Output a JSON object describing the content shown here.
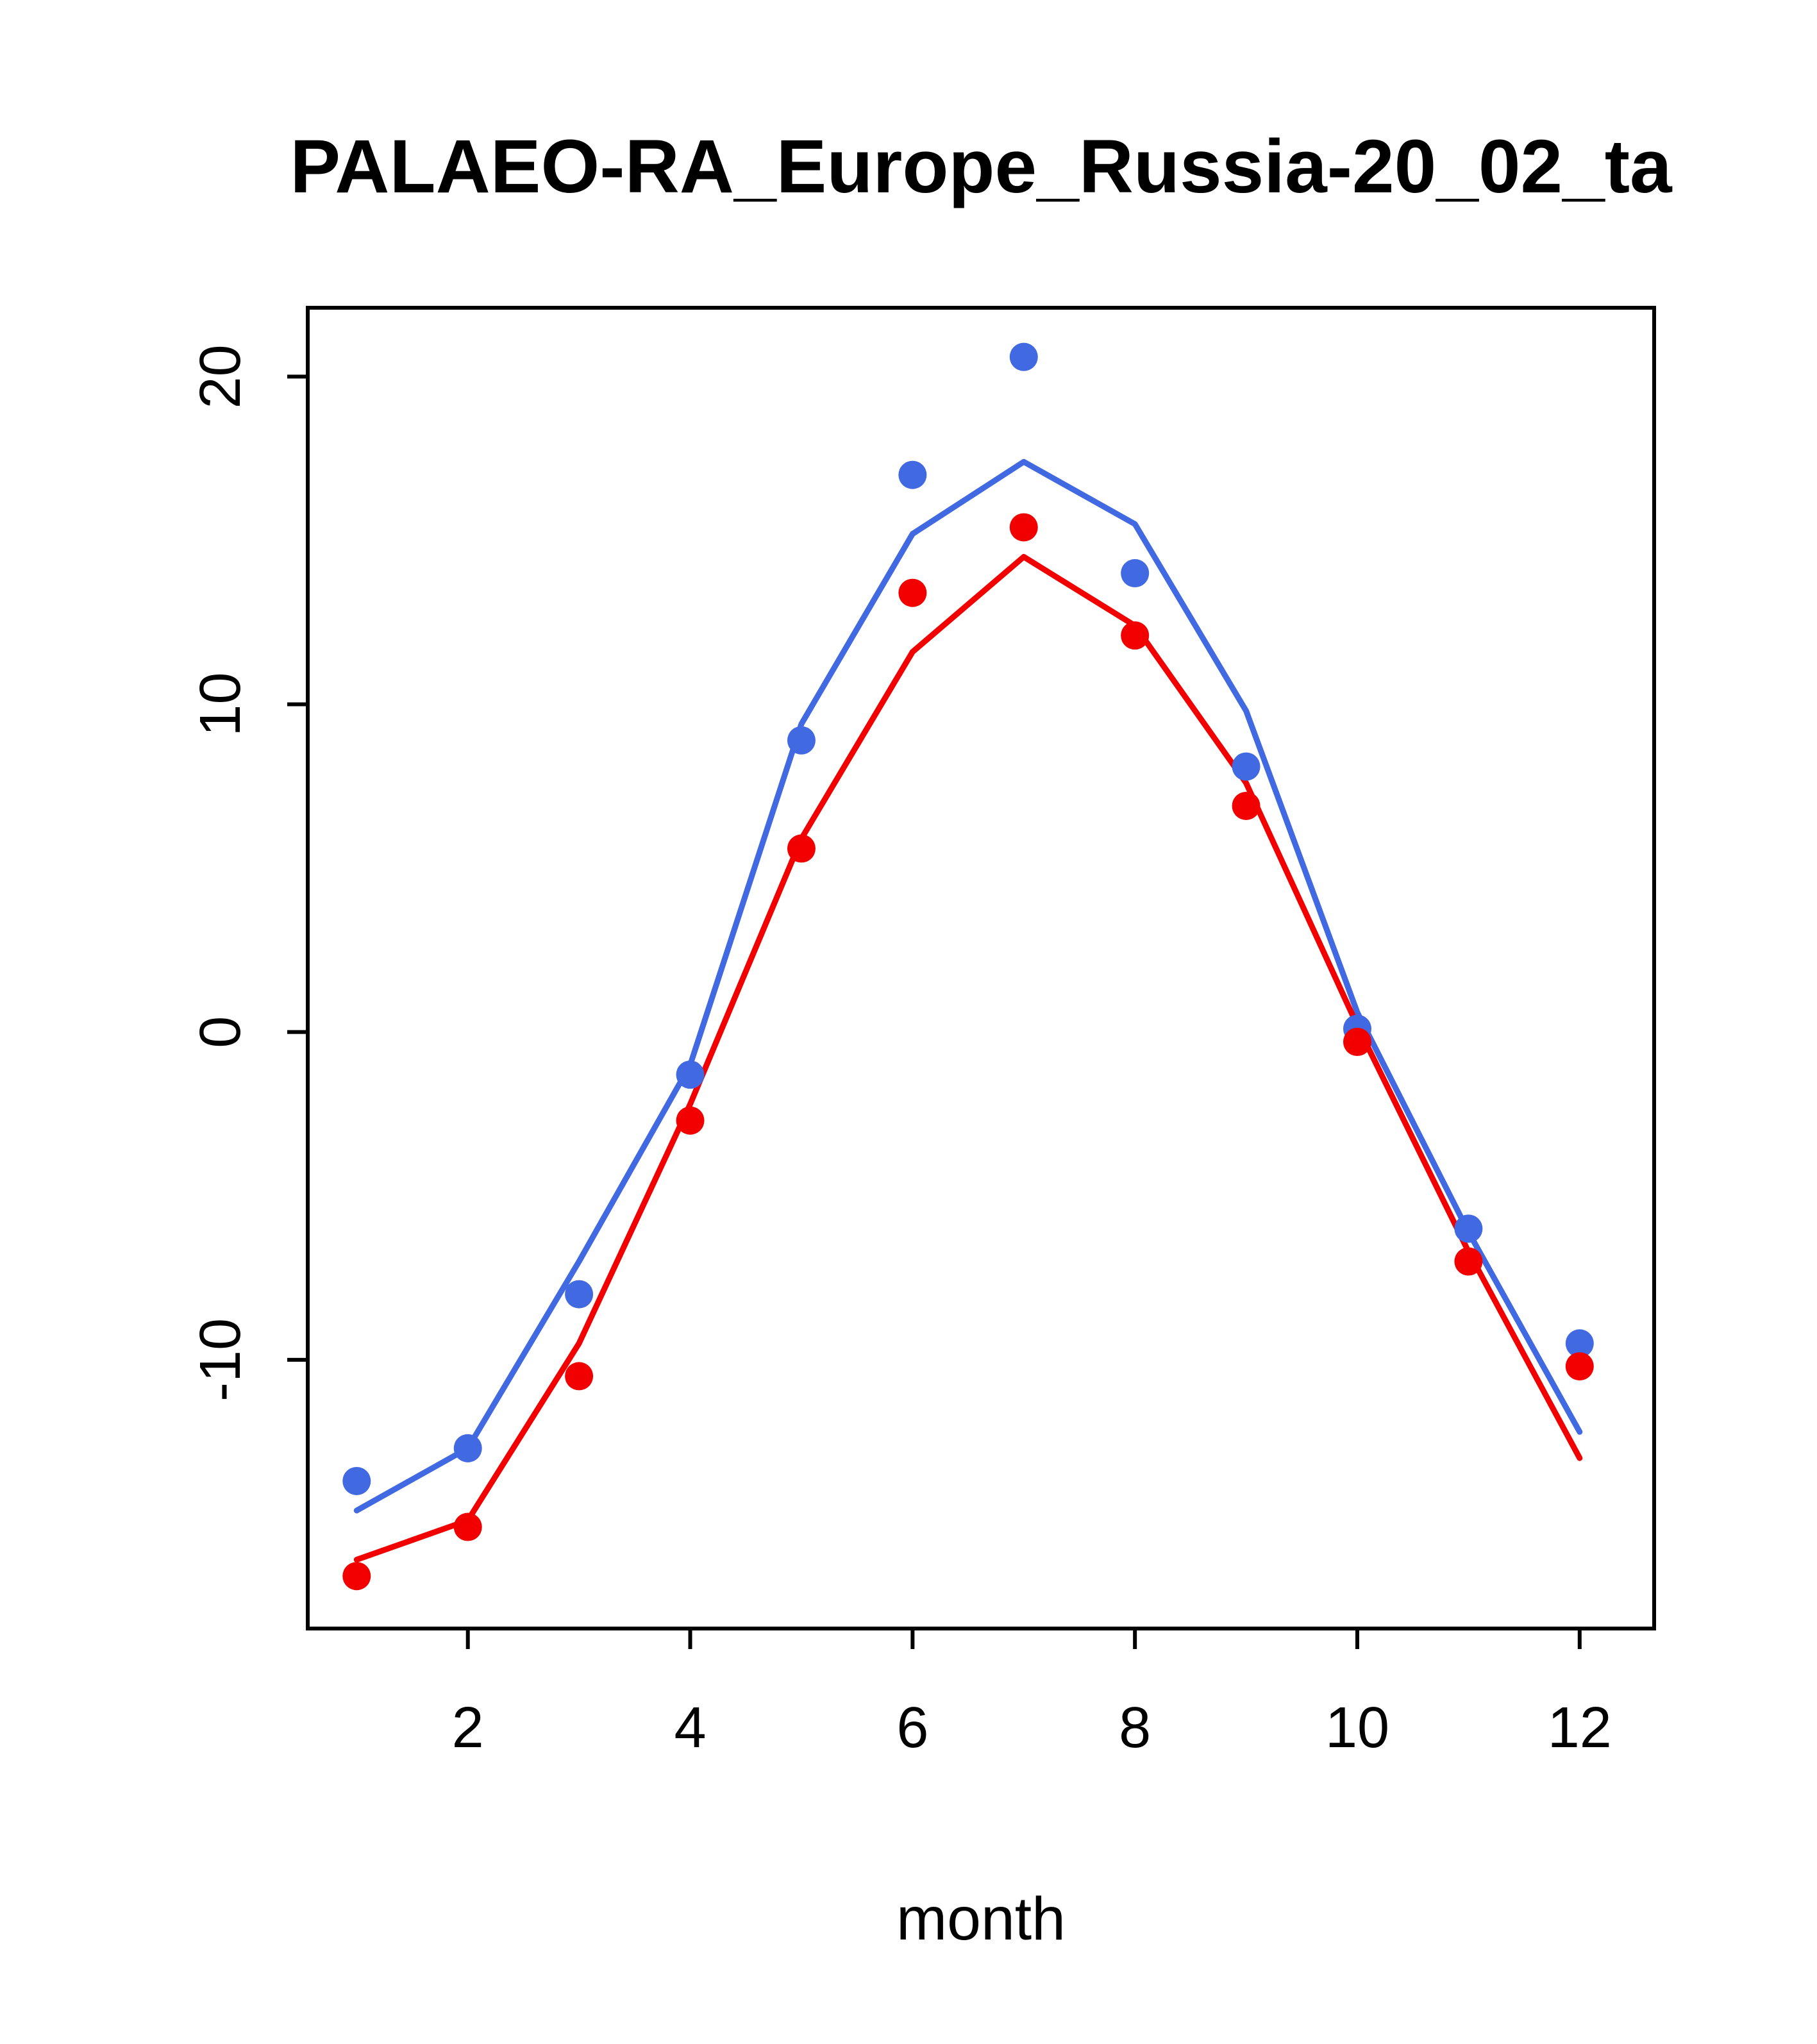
{
  "figure": {
    "title": "PALAEO-RA_Europe_Russia-20_02_ta",
    "xlabel": "month"
  },
  "chart_data": {
    "type": "line",
    "title": "PALAEO-RA_Europe_Russia-20_02_ta",
    "xlabel": "month",
    "ylabel": "",
    "x": [
      1,
      2,
      3,
      4,
      5,
      6,
      7,
      8,
      9,
      10,
      11,
      12
    ],
    "xticks": [
      2,
      4,
      6,
      8,
      10,
      12
    ],
    "yticks": [
      -10,
      0,
      10,
      20
    ],
    "xlim": [
      0.56,
      12.67
    ],
    "ylim": [
      -18.2,
      22.1
    ],
    "grid": false,
    "legend": "none",
    "colors": {
      "blue": "#4169E1",
      "red": "#F20000",
      "axis": "#000000",
      "background": "#FFFFFF"
    },
    "series": [
      {
        "name": "blue-line",
        "color": "#4169E1",
        "style": "line",
        "values": [
          -14.6,
          -12.7,
          -7.0,
          -1.0,
          9.4,
          15.2,
          17.4,
          15.5,
          9.8,
          0.6,
          -6.1,
          -12.2
        ]
      },
      {
        "name": "blue-points",
        "color": "#4169E1",
        "style": "points",
        "values": [
          -13.7,
          -12.7,
          -8.0,
          -1.3,
          8.9,
          17.0,
          20.6,
          14.0,
          8.1,
          0.1,
          -6.0,
          -9.5
        ]
      },
      {
        "name": "red-line",
        "color": "#F20000",
        "style": "line",
        "values": [
          -16.1,
          -14.9,
          -9.5,
          -2.2,
          5.9,
          11.6,
          14.5,
          12.4,
          7.6,
          0.2,
          -6.7,
          -13.0
        ]
      },
      {
        "name": "red-points",
        "color": "#F20000",
        "style": "points",
        "values": [
          -16.6,
          -15.1,
          -10.5,
          -2.7,
          5.6,
          13.4,
          15.4,
          12.1,
          6.9,
          -0.3,
          -7.0,
          -10.2
        ]
      }
    ]
  }
}
